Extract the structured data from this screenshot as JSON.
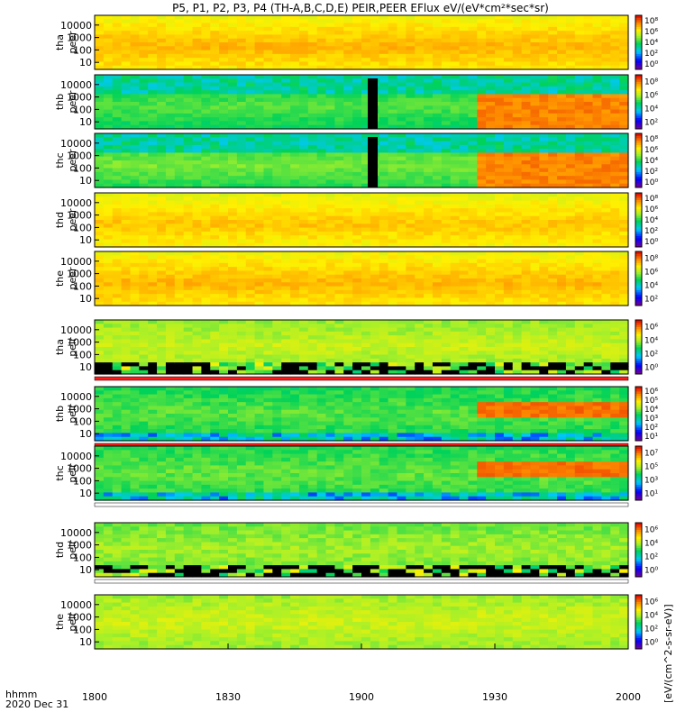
{
  "title": "P5, P1, P2, P3, P4 (TH-A,B,C,D,E) PEIR,PEER EFlux eV/(eV*cm²*sec*sr)",
  "footer": {
    "label": "hhmm",
    "date": "2020 Dec 31"
  },
  "colorbar_label": "[eV/(cm^2-s-sr-eV)]",
  "colors": {
    "frame": "#000000",
    "flag_red": "#ff1a1a",
    "flag_white": "#ffffff"
  },
  "chart_data": {
    "type": "heatmap",
    "x_ticks": [
      "1800",
      "1830",
      "1900",
      "1930",
      "2000"
    ],
    "y_ticks": [
      "10",
      "100",
      "1000",
      "10000"
    ],
    "y_scale": "log",
    "panels": [
      {
        "probe": "tha",
        "species": "peer",
        "cb_ticks": [
          "10⁰",
          "10²",
          "10⁴",
          "10⁶",
          "10⁸"
        ],
        "base": 0.82,
        "style": "electron_steady"
      },
      {
        "probe": "thb",
        "species": "peer",
        "cb_ticks": [
          "10²",
          "10⁴",
          "10⁶",
          "10⁸"
        ],
        "base": 0.55,
        "style": "electron_var"
      },
      {
        "probe": "thc",
        "species": "peer",
        "cb_ticks": [
          "10⁰",
          "10²",
          "10⁴",
          "10⁶",
          "10⁸"
        ],
        "base": 0.58,
        "style": "electron_var"
      },
      {
        "probe": "thd",
        "species": "peer",
        "cb_ticks": [
          "10⁰",
          "10²",
          "10⁴",
          "10⁶",
          "10⁸"
        ],
        "base": 0.8,
        "style": "electron_steady"
      },
      {
        "probe": "the",
        "species": "peer",
        "cb_ticks": [
          "10²",
          "10⁴",
          "10⁶",
          "10⁸"
        ],
        "base": 0.82,
        "style": "electron_steady"
      },
      {
        "probe": "tha",
        "species": "peir",
        "cb_ticks": [
          "10⁰",
          "10²",
          "10⁴",
          "10⁶"
        ],
        "base": 0.66,
        "style": "ion_noisy"
      },
      {
        "probe": "thb",
        "species": "peir",
        "cb_ticks": [
          "10¹",
          "10²",
          "10³",
          "10⁴",
          "10⁵",
          "10⁶"
        ],
        "base": 0.55,
        "style": "ion_var"
      },
      {
        "probe": "thc",
        "species": "peir",
        "cb_ticks": [
          "10¹",
          "10³",
          "10⁵",
          "10⁷"
        ],
        "base": 0.56,
        "style": "ion_var"
      },
      {
        "probe": "thd",
        "species": "peir",
        "cb_ticks": [
          "10⁰",
          "10²",
          "10⁴",
          "10⁶"
        ],
        "base": 0.62,
        "style": "ion_noisy"
      },
      {
        "probe": "the",
        "species": "peir",
        "cb_ticks": [
          "10⁰",
          "10²",
          "10⁴",
          "10⁶"
        ],
        "base": 0.67,
        "style": "ion_steady"
      }
    ]
  }
}
